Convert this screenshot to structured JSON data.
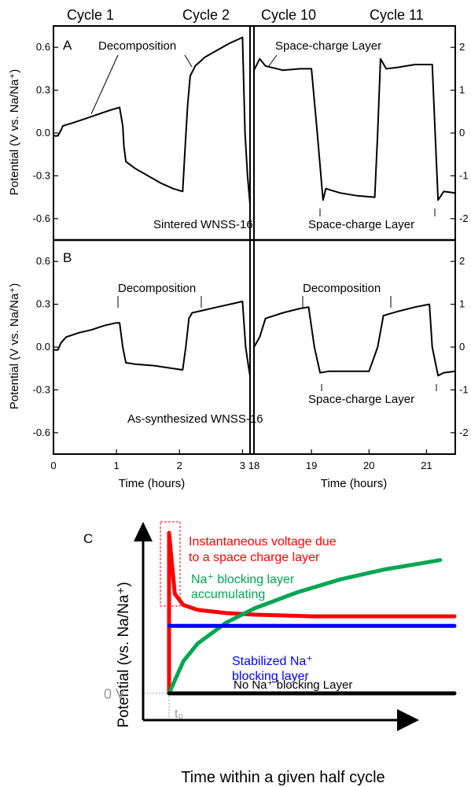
{
  "chart_data": [
    {
      "panel": "A",
      "type": "line",
      "cycle_labels": [
        "Cycle 1",
        "Cycle 2",
        "Cycle 10",
        "Cycle 11"
      ],
      "ylabel": "Potential (V vs. Na/Na⁺)",
      "xlabel": "Time (hours)",
      "ylim": [
        -0.75,
        0.75
      ],
      "y_ticks": [
        -0.6,
        -0.3,
        0.0,
        0.3,
        0.6
      ],
      "y_tick_labels": [
        "-0.6",
        "-0.3",
        "0.0",
        "0.3",
        "0.6"
      ],
      "y2_ticks": [
        -2,
        -1,
        0,
        1,
        2
      ],
      "y2_tick_labels": [
        "-2",
        "-1",
        "0",
        "1",
        "2"
      ],
      "annotations": [
        "Decomposition",
        "Space-charge Layer",
        "Space-charge Layer",
        "Sintered WNSS-16"
      ],
      "series": [
        {
          "segment": "left",
          "x": [
            0,
            0.07,
            0.12,
            0.15,
            0.3,
            0.5,
            0.7,
            0.9,
            1.05,
            1.1,
            1.12,
            1.15,
            1.3,
            1.5,
            1.7,
            1.9,
            2.05,
            2.1,
            2.13,
            2.17,
            2.25,
            2.4,
            2.6,
            2.8,
            3.0,
            3.04,
            3.08,
            3.12
          ],
          "y": [
            -0.02,
            -0.02,
            0.02,
            0.05,
            0.07,
            0.1,
            0.13,
            0.16,
            0.18,
            0.05,
            -0.1,
            -0.2,
            -0.25,
            -0.3,
            -0.35,
            -0.39,
            -0.41,
            -0.02,
            0.2,
            0.4,
            0.47,
            0.53,
            0.58,
            0.63,
            0.67,
            0.0,
            -0.3,
            -0.5
          ]
        },
        {
          "segment": "right",
          "x": [
            18,
            18.1,
            18.2,
            18.5,
            18.8,
            19.0,
            19.1,
            19.2,
            19.25,
            19.5,
            19.8,
            20.1,
            20.15,
            20.2,
            20.3,
            20.5,
            20.8,
            21.1,
            21.15,
            21.2,
            21.3,
            21.5
          ],
          "y": [
            0.44,
            0.52,
            0.47,
            0.44,
            0.45,
            0.45,
            0.0,
            -0.47,
            -0.39,
            -0.42,
            -0.44,
            -0.45,
            0.0,
            0.52,
            0.45,
            0.46,
            0.48,
            0.48,
            0.0,
            -0.47,
            -0.41,
            -0.42
          ]
        }
      ]
    },
    {
      "panel": "B",
      "type": "line",
      "ylabel": "Potential (V vs. Na/Na⁺)",
      "xlabel": "Time (hours)",
      "ylim": [
        -0.75,
        0.75
      ],
      "y_ticks": [
        -0.6,
        -0.3,
        0.0,
        0.3,
        0.6
      ],
      "y_tick_labels": [
        "-0.6",
        "-0.3",
        "0.0",
        "0.3",
        "0.6"
      ],
      "y2_ticks": [
        -2,
        -1,
        0,
        1,
        2
      ],
      "y2_tick_labels": [
        "-2",
        "-1",
        "0",
        "1",
        "2"
      ],
      "x_ticks_left": [
        0,
        1,
        2,
        3
      ],
      "x_tick_labels_left": [
        "0",
        "1",
        "2",
        "3"
      ],
      "x_ticks_right": [
        18,
        19,
        20,
        21
      ],
      "x_tick_labels_right": [
        "18",
        "19",
        "20",
        "21"
      ],
      "annotations": [
        "Decomposition",
        "Decomposition",
        "Space-charge Layer",
        "Space-charge Layer",
        "As-synthesized WNSS-16"
      ],
      "series": [
        {
          "segment": "left",
          "x": [
            0,
            0.07,
            0.12,
            0.2,
            0.4,
            0.6,
            0.8,
            1.0,
            1.05,
            1.1,
            1.15,
            1.3,
            1.6,
            1.9,
            2.05,
            2.1,
            2.15,
            2.2,
            2.4,
            2.6,
            2.8,
            3.0,
            3.05,
            3.1,
            3.12
          ],
          "y": [
            -0.02,
            -0.02,
            0.03,
            0.07,
            0.1,
            0.12,
            0.15,
            0.17,
            0.17,
            0.0,
            -0.11,
            -0.12,
            -0.13,
            -0.15,
            -0.16,
            0.0,
            0.2,
            0.24,
            0.26,
            0.28,
            0.3,
            0.32,
            0.0,
            -0.15,
            -0.2
          ]
        },
        {
          "segment": "right",
          "x": [
            18,
            18.1,
            18.2,
            18.5,
            18.8,
            18.95,
            19.05,
            19.15,
            19.3,
            19.6,
            20.0,
            20.15,
            20.25,
            20.5,
            20.8,
            21.05,
            21.1,
            21.2,
            21.3,
            21.5
          ],
          "y": [
            0.0,
            0.07,
            0.2,
            0.24,
            0.27,
            0.28,
            0.0,
            -0.18,
            -0.17,
            -0.17,
            -0.17,
            0.0,
            0.22,
            0.25,
            0.28,
            0.3,
            0.0,
            -0.2,
            -0.18,
            -0.17
          ]
        }
      ]
    },
    {
      "panel": "C",
      "type": "line",
      "ylabel": "Potential (vs. Na/Na⁺)",
      "xlabel": "Time within a given half cycle",
      "y_zero_label": "0 V",
      "x_marker_label": "t₀",
      "series": [
        {
          "name": "Instantaneous voltage due to a space charge layer",
          "color": "#ff0000",
          "x": [
            0,
            0,
            0.02,
            0.05,
            0.1,
            0.2,
            0.3,
            0.5,
            0.7,
            1.0
          ],
          "y": [
            0,
            1.0,
            0.62,
            0.55,
            0.52,
            0.5,
            0.49,
            0.48,
            0.48,
            0.48
          ]
        },
        {
          "name": "Na⁺ blocking layer accumulating",
          "color": "#00a651",
          "x": [
            0,
            0.05,
            0.1,
            0.2,
            0.3,
            0.45,
            0.6,
            0.75,
            0.95
          ],
          "y": [
            0,
            0.2,
            0.31,
            0.44,
            0.53,
            0.63,
            0.71,
            0.77,
            0.83
          ]
        },
        {
          "name": "Stabilized Na⁺ blocking layer",
          "color": "#0000ff",
          "x": [
            0,
            1.0
          ],
          "y": [
            0.42,
            0.42
          ]
        },
        {
          "name": "No Na⁺ blocking Layer",
          "color": "#000000",
          "x": [
            0,
            1.0
          ],
          "y": [
            0,
            0
          ]
        }
      ]
    }
  ],
  "labels": {
    "cycle1": "Cycle 1",
    "cycle2": "Cycle 2",
    "cycle10": "Cycle 10",
    "cycle11": "Cycle 11",
    "panel_a": "A",
    "panel_b": "B",
    "panel_c": "C",
    "decomposition": "Decomposition",
    "space_charge": "Space-charge Layer",
    "sintered": "Sintered WNSS-16",
    "as_synth": "As-synthesized WNSS-16",
    "ylabel_ab": "Potential (V vs. Na/Na⁺)",
    "xlabel_ab": "Time (hours)",
    "ylabel_c": "Potential (vs. Na/Na⁺)",
    "xlabel_c": "Time within a given half cycle",
    "zero_v": "0 V",
    "t0": "t₀",
    "c_red_line1": "Instantaneous voltage due",
    "c_red_line2": "to a space charge layer",
    "c_green_line1": "Na⁺ blocking layer",
    "c_green_line2": "accumulating",
    "c_blue_line1": "Stabilized Na⁺",
    "c_blue_line2": "blocking layer",
    "c_black": "No Na⁺ blocking Layer"
  },
  "colors": {
    "red": "#ff0000",
    "green": "#00a651",
    "blue": "#0000ff",
    "black": "#000000",
    "gray": "#999999"
  }
}
